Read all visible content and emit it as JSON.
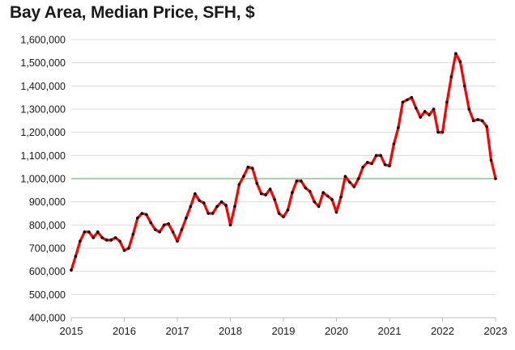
{
  "chart_data": {
    "type": "line",
    "title": "Bay Area, Median Price, SFH, $",
    "xlabel": "",
    "ylabel": "",
    "ylim": [
      400000,
      1600000
    ],
    "xlim": [
      2015,
      2023
    ],
    "y_ticks": [
      400000,
      500000,
      600000,
      700000,
      800000,
      900000,
      1000000,
      1100000,
      1200000,
      1300000,
      1400000,
      1500000,
      1600000
    ],
    "y_tick_labels": [
      "400,000",
      "500,000",
      "600,000",
      "700,000",
      "800,000",
      "900,000",
      "1,000,000",
      "1,100,000",
      "1,200,000",
      "1,300,000",
      "1,400,000",
      "1,500,000",
      "1,600,000"
    ],
    "x_ticks": [
      2015,
      2016,
      2017,
      2018,
      2019,
      2020,
      2021,
      2022,
      2023
    ],
    "x_tick_labels": [
      "2015",
      "2016",
      "2017",
      "2018",
      "2019",
      "2020",
      "2021",
      "2022",
      "2023"
    ],
    "grid": "horizontal",
    "legend": "none",
    "series": [
      {
        "color": "#ff0000",
        "marker_color": "#000000",
        "x_start": 2015,
        "x_step_months": 1,
        "values": [
          605000,
          665000,
          730000,
          770000,
          770000,
          745000,
          770000,
          745000,
          735000,
          735000,
          745000,
          730000,
          690000,
          700000,
          760000,
          830000,
          850000,
          845000,
          810000,
          780000,
          770000,
          800000,
          805000,
          770000,
          730000,
          780000,
          830000,
          880000,
          935000,
          905000,
          895000,
          850000,
          850000,
          880000,
          900000,
          885000,
          800000,
          880000,
          975000,
          1010000,
          1050000,
          1045000,
          980000,
          935000,
          930000,
          955000,
          910000,
          850000,
          835000,
          865000,
          940000,
          990000,
          990000,
          960000,
          945000,
          900000,
          880000,
          940000,
          925000,
          910000,
          855000,
          920000,
          1010000,
          985000,
          965000,
          1000000,
          1050000,
          1070000,
          1065000,
          1100000,
          1100000,
          1060000,
          1055000,
          1150000,
          1220000,
          1330000,
          1340000,
          1350000,
          1305000,
          1265000,
          1290000,
          1275000,
          1300000,
          1200000,
          1200000,
          1330000,
          1440000,
          1540000,
          1505000,
          1400000,
          1300000,
          1250000,
          1255000,
          1250000,
          1225000,
          1080000,
          1000000
        ]
      }
    ],
    "reference_line": {
      "y": 1000000,
      "color": "#4caf50"
    }
  }
}
